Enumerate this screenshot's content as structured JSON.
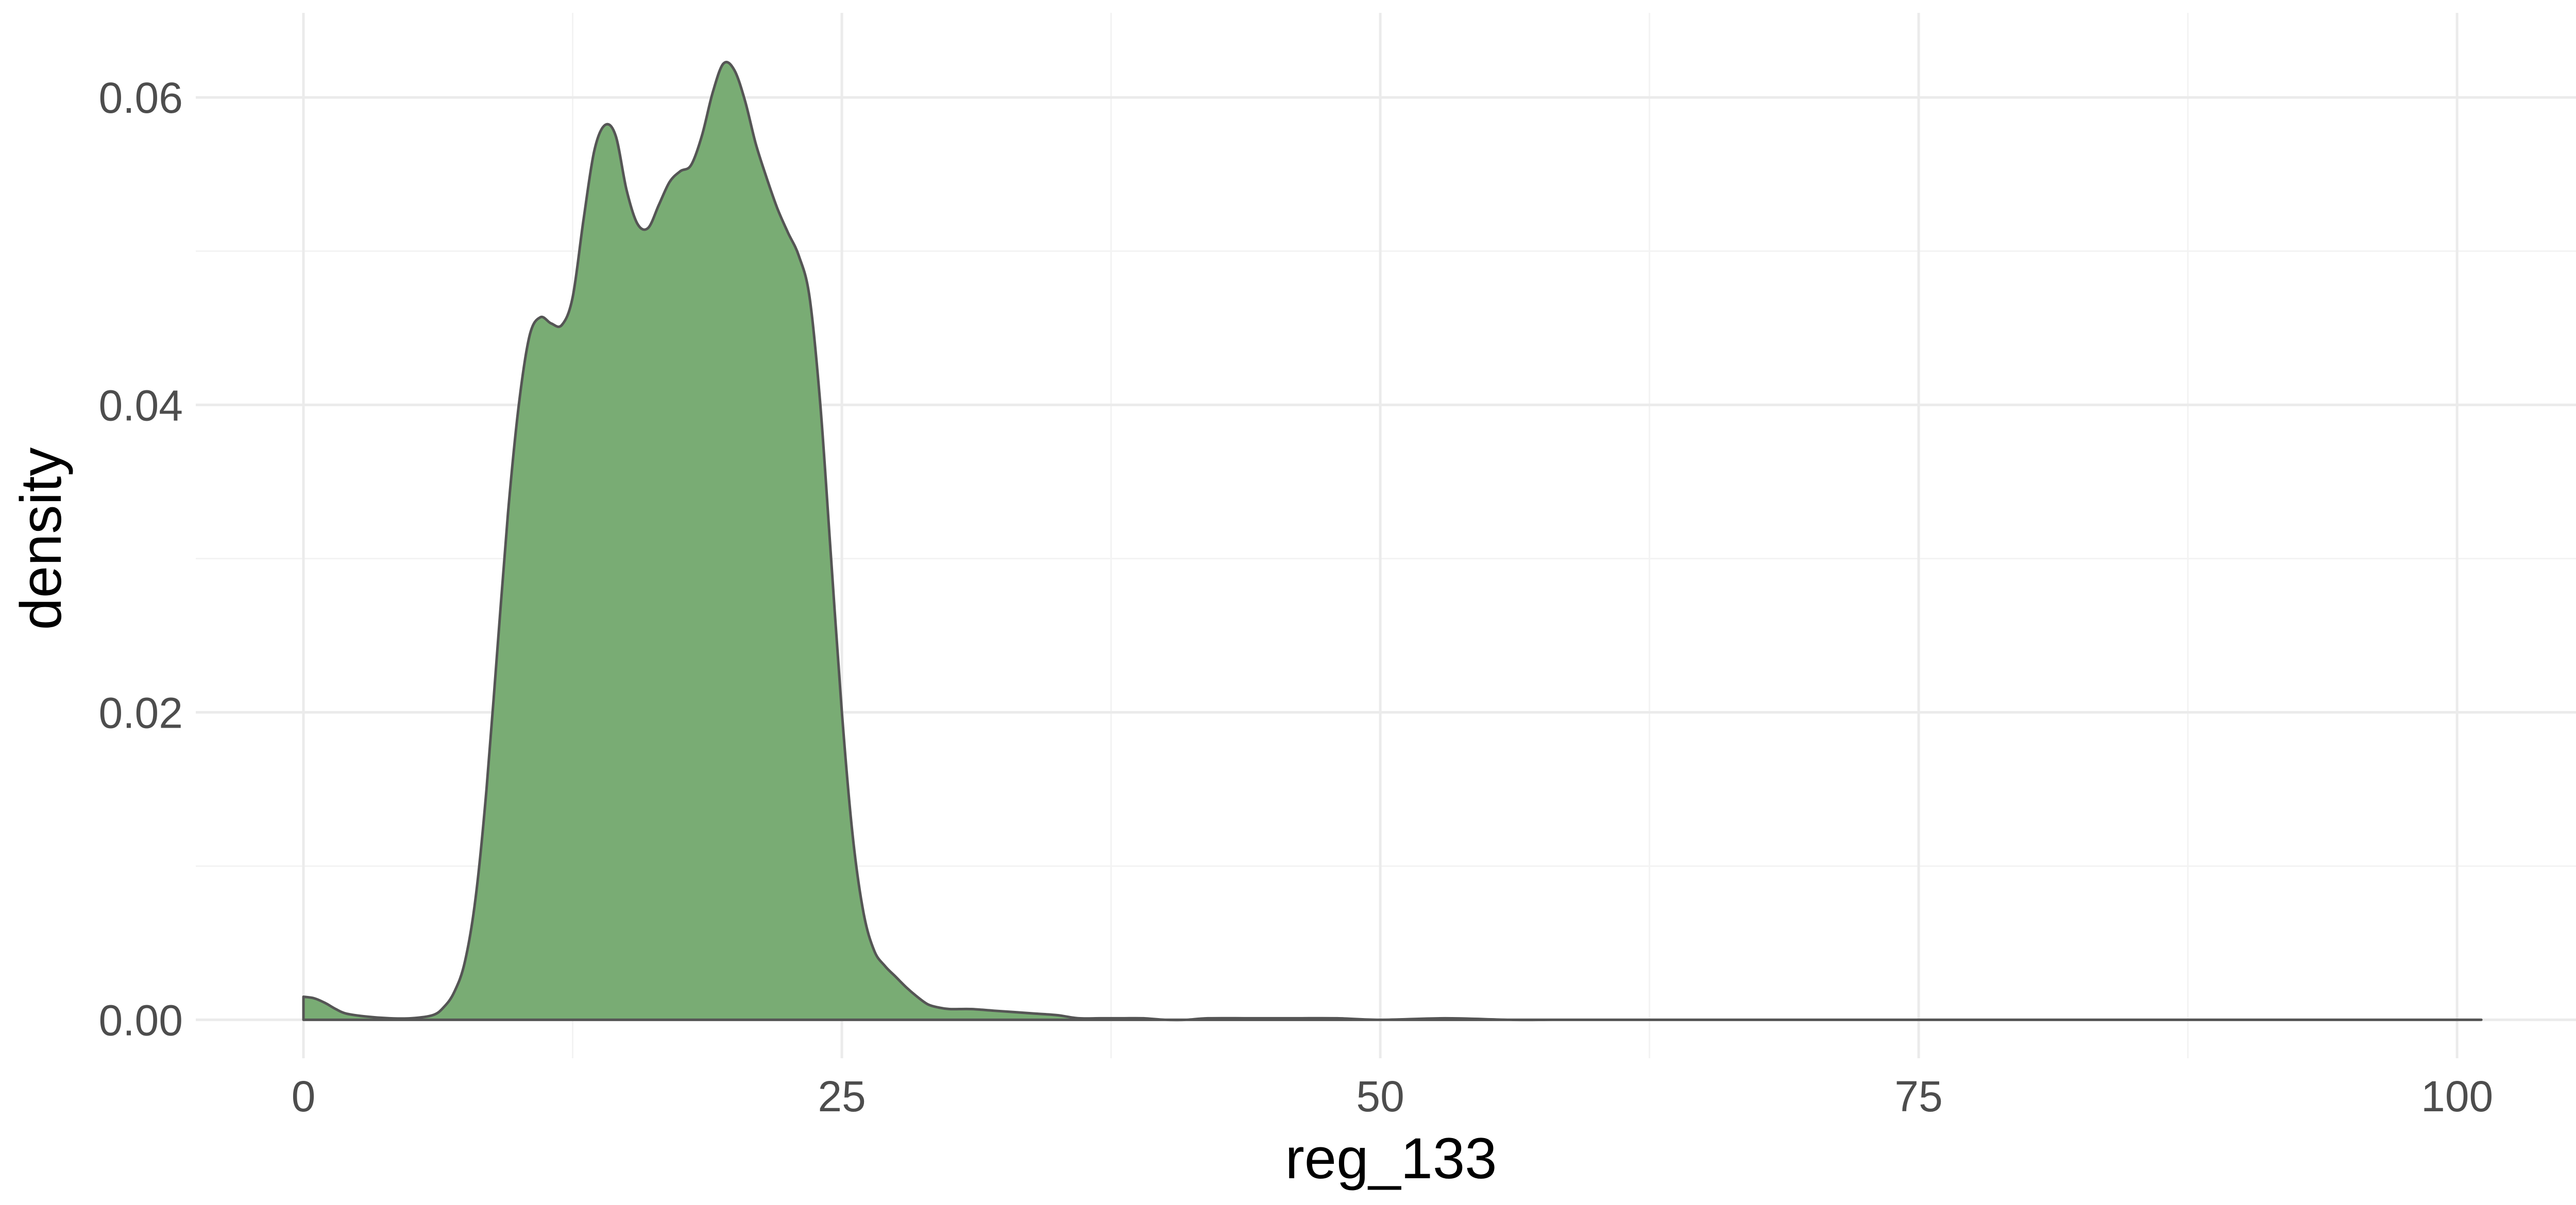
{
  "chart_data": {
    "type": "area",
    "title": "",
    "xlabel": "reg_133",
    "ylabel": "density",
    "xlim": [
      -5,
      106
    ],
    "ylim": [
      -0.0025,
      0.0655
    ],
    "x_ticks": [
      0,
      25,
      50,
      75,
      100
    ],
    "x_tick_labels": [
      "0",
      "25",
      "50",
      "75",
      "100"
    ],
    "y_ticks": [
      0,
      0.02,
      0.04,
      0.06
    ],
    "y_tick_labels": [
      "0.00",
      "0.02",
      "0.04",
      "0.06"
    ],
    "grid": true,
    "legend": "none",
    "fill_color": "#79ac74",
    "line_color": "#555555",
    "series": [
      {
        "x": [
          0,
          0.5,
          1,
          1.5,
          2,
          3,
          4,
          5,
          6,
          6.5,
          7,
          7.5,
          8,
          8.5,
          9,
          9.5,
          10,
          10.5,
          11,
          11.5,
          12,
          12.5,
          13,
          13.5,
          14,
          14.5,
          15,
          15.5,
          16,
          16.5,
          17,
          17.5,
          18,
          18.5,
          19,
          19.5,
          20,
          20.5,
          21,
          21.5,
          22,
          22.5,
          23,
          23.5,
          24,
          24.5,
          25,
          25.5,
          26,
          26.5,
          27,
          27.5,
          28,
          28.5,
          29,
          29.5,
          30,
          31,
          32,
          33,
          34,
          35,
          36,
          37,
          38,
          39,
          40,
          41,
          42,
          44,
          46,
          48,
          50,
          53,
          56,
          58,
          60,
          65,
          70,
          80,
          90,
          100,
          101
        ],
        "y": [
          0.0015,
          0.0014,
          0.0011,
          0.0007,
          0.0004,
          0.0002,
          0.0001,
          0.0001,
          0.0003,
          0.0008,
          0.0018,
          0.0038,
          0.008,
          0.015,
          0.024,
          0.033,
          0.04,
          0.0445,
          0.0457,
          0.0453,
          0.0452,
          0.047,
          0.052,
          0.0565,
          0.0582,
          0.0575,
          0.054,
          0.0518,
          0.0515,
          0.053,
          0.0545,
          0.0552,
          0.0556,
          0.0575,
          0.0603,
          0.0622,
          0.0618,
          0.0598,
          0.057,
          0.0548,
          0.0528,
          0.0512,
          0.0497,
          0.047,
          0.04,
          0.03,
          0.02,
          0.012,
          0.007,
          0.0045,
          0.0035,
          0.0028,
          0.0021,
          0.0015,
          0.001,
          0.0008,
          0.0007,
          0.0007,
          0.0006,
          0.0005,
          0.0004,
          0.0003,
          0.0001,
          0.0001,
          0.0001,
          0.0001,
          0.0,
          0.0,
          0.0001,
          0.0001,
          0.0001,
          0.0001,
          0.0,
          0.0001,
          0.0,
          0.0,
          0.0,
          0.0,
          0.0,
          0.0,
          0.0,
          0.0,
          0.0
        ]
      }
    ]
  }
}
